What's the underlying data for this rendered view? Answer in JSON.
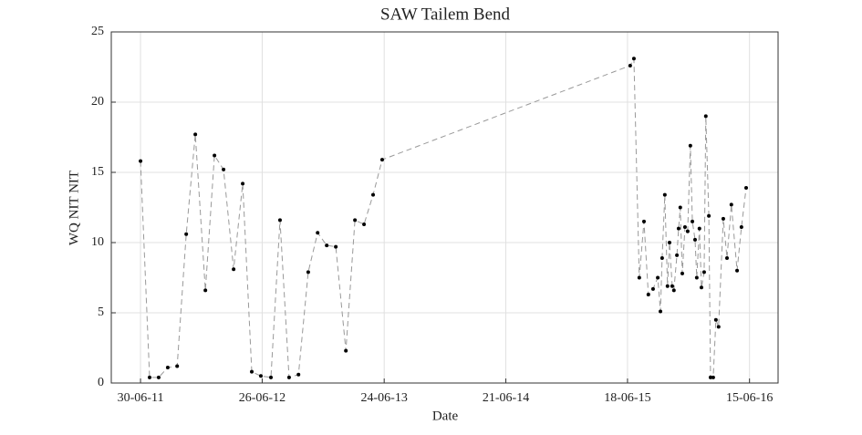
{
  "chart_data": {
    "type": "line",
    "title": "SAW Tailem Bend",
    "x_label": "Date",
    "y_label": "WQ NIT NIT",
    "x": [
      "2011-06-30",
      "2011-07-27",
      "2011-08-23",
      "2011-09-19",
      "2011-10-17",
      "2011-11-13",
      "2011-12-10",
      "2012-01-09",
      "2012-02-05",
      "2012-03-03",
      "2012-04-02",
      "2012-04-29",
      "2012-05-26",
      "2012-06-22",
      "2012-07-22",
      "2012-08-18",
      "2012-09-14",
      "2012-10-12",
      "2012-11-10",
      "2012-12-08",
      "2013-01-04",
      "2013-01-31",
      "2013-03-02",
      "2013-03-29",
      "2013-04-25",
      "2013-05-22",
      "2013-06-18",
      "2015-06-26",
      "2015-07-07",
      "2015-07-23",
      "2015-08-06",
      "2015-08-19",
      "2015-09-02",
      "2015-09-16",
      "2015-09-24",
      "2015-09-29",
      "2015-10-07",
      "2015-10-15",
      "2015-10-21",
      "2015-10-29",
      "2015-11-03",
      "2015-11-12",
      "2015-11-17",
      "2015-11-22",
      "2015-11-28",
      "2015-12-06",
      "2015-12-14",
      "2015-12-22",
      "2015-12-28",
      "2016-01-05",
      "2016-01-10",
      "2016-01-18",
      "2016-01-24",
      "2016-02-01",
      "2016-02-06",
      "2016-02-15",
      "2016-02-20",
      "2016-02-28",
      "2016-03-07",
      "2016-03-15",
      "2016-03-29",
      "2016-04-09",
      "2016-04-22",
      "2016-05-09",
      "2016-05-22",
      "2016-06-05"
    ],
    "values": [
      15.8,
      0.4,
      0.4,
      1.1,
      1.2,
      10.6,
      17.7,
      6.6,
      16.2,
      15.2,
      8.1,
      14.2,
      0.8,
      0.5,
      0.4,
      11.6,
      0.4,
      0.6,
      7.9,
      10.7,
      9.8,
      9.7,
      2.3,
      11.6,
      11.3,
      13.4,
      15.9,
      22.6,
      23.1,
      7.5,
      11.5,
      6.3,
      6.7,
      7.5,
      5.1,
      8.9,
      13.4,
      6.9,
      10.0,
      6.9,
      6.6,
      9.1,
      11.0,
      12.5,
      7.8,
      11.1,
      10.8,
      16.9,
      11.5,
      10.2,
      7.5,
      11.0,
      6.8,
      7.9,
      19.0,
      11.9,
      0.4,
      0.4,
      4.5,
      4.0,
      11.7,
      8.9,
      12.7,
      8.0,
      11.1,
      13.9
    ],
    "color": "#000000",
    "line_color": "#999999",
    "line_style": "dashed",
    "xlim": [
      "2011-04-04",
      "2016-09-08"
    ],
    "xticks": [
      {
        "value": "2011-06-30",
        "label": "30-06-11"
      },
      {
        "value": "2012-06-26",
        "label": "26-06-12"
      },
      {
        "value": "2013-06-24",
        "label": "24-06-13"
      },
      {
        "value": "2014-06-21",
        "label": "21-06-14"
      },
      {
        "value": "2015-06-18",
        "label": "18-06-15"
      },
      {
        "value": "2016-06-15",
        "label": "15-06-16"
      }
    ],
    "ylim": [
      0,
      25
    ],
    "yticks": [
      0,
      5,
      10,
      15,
      20,
      25
    ],
    "grid": true
  }
}
